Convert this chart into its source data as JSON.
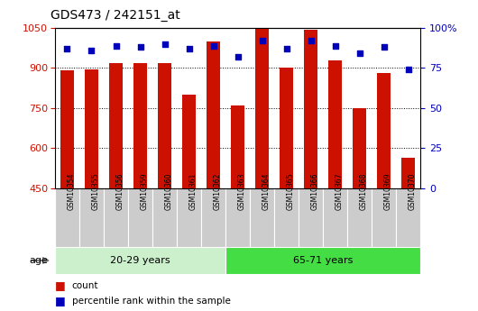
{
  "title": "GDS473 / 242151_at",
  "samples": [
    "GSM10354",
    "GSM10355",
    "GSM10356",
    "GSM10359",
    "GSM10360",
    "GSM10361",
    "GSM10362",
    "GSM10363",
    "GSM10364",
    "GSM10365",
    "GSM10366",
    "GSM10367",
    "GSM10368",
    "GSM10369",
    "GSM10370"
  ],
  "counts": [
    890,
    895,
    920,
    920,
    920,
    800,
    1000,
    760,
    1050,
    900,
    1045,
    930,
    750,
    880,
    565
  ],
  "percentile_ranks": [
    87,
    86,
    89,
    88,
    90,
    87,
    89,
    82,
    92,
    87,
    92,
    89,
    84,
    88,
    74
  ],
  "group1_label": "20-29 years",
  "group2_label": "65-71 years",
  "group1_count": 7,
  "group2_count": 8,
  "ylim_left": [
    450,
    1050
  ],
  "ylim_right": [
    0,
    100
  ],
  "yticks_left": [
    450,
    600,
    750,
    900,
    1050
  ],
  "yticks_right": [
    0,
    25,
    50,
    75,
    100
  ],
  "bar_color": "#cc1100",
  "dot_color": "#0000bb",
  "group1_bg": "#ccf0cc",
  "group2_bg": "#44dd44",
  "tick_bg": "#cccccc",
  "age_label": "age",
  "legend_items": [
    {
      "color": "#cc1100",
      "label": "count"
    },
    {
      "color": "#0000bb",
      "label": "percentile rank within the sample"
    }
  ]
}
